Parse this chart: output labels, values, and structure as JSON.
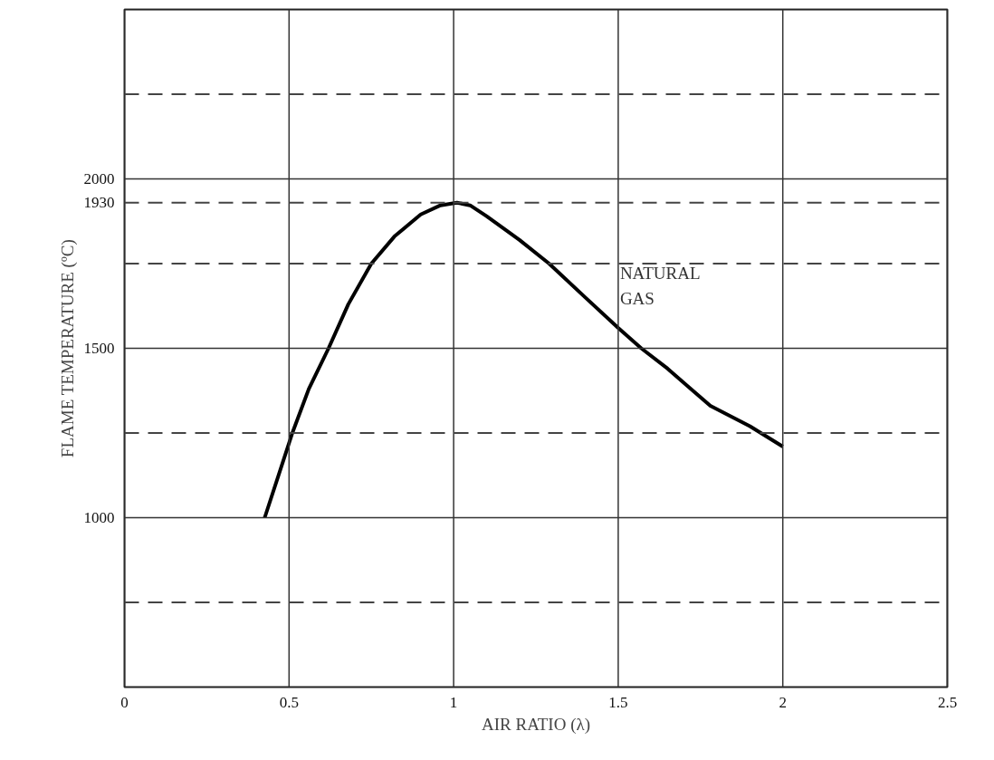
{
  "chart_data": {
    "type": "line",
    "xlabel": "AIR RATIO (λ)",
    "ylabel": "FLAME TEMPERATURE (ºC)",
    "x": [
      0.426,
      0.51,
      0.56,
      0.62,
      0.68,
      0.75,
      0.82,
      0.9,
      0.96,
      1.01,
      1.05,
      1.1,
      1.2,
      1.29,
      1.4,
      1.5,
      1.57,
      1.65,
      1.78,
      1.9,
      2.0
    ],
    "series": [
      {
        "name": "NATURAL GAS",
        "color": "#000000",
        "values": [
          1000,
          1250,
          1380,
          1500,
          1630,
          1750,
          1830,
          1895,
          1922,
          1930,
          1922,
          1890,
          1820,
          1750,
          1650,
          1560,
          1500,
          1440,
          1330,
          1270,
          1210
        ]
      }
    ],
    "xlim": [
      0,
      2.5
    ],
    "xticks": [
      0,
      0.5,
      1,
      1.5,
      2,
      2.5
    ],
    "ylim": [
      500,
      2500
    ],
    "yticks": [
      1000,
      1500,
      1930,
      2000
    ],
    "ref_lines": [
      {
        "axis": "y",
        "value": 750,
        "line_style": "dashed",
        "color": "#444444"
      },
      {
        "axis": "y",
        "value": 1250,
        "line_style": "dashed",
        "color": "#444444"
      },
      {
        "axis": "y",
        "value": 1750,
        "line_style": "dashed",
        "color": "#444444"
      },
      {
        "axis": "y",
        "value": 1930,
        "line_style": "dashed",
        "color": "#444444"
      },
      {
        "axis": "y",
        "value": 2250,
        "line_style": "dashed",
        "color": "#444444"
      }
    ],
    "grid": true,
    "line_style": "solid",
    "marker": "none"
  }
}
